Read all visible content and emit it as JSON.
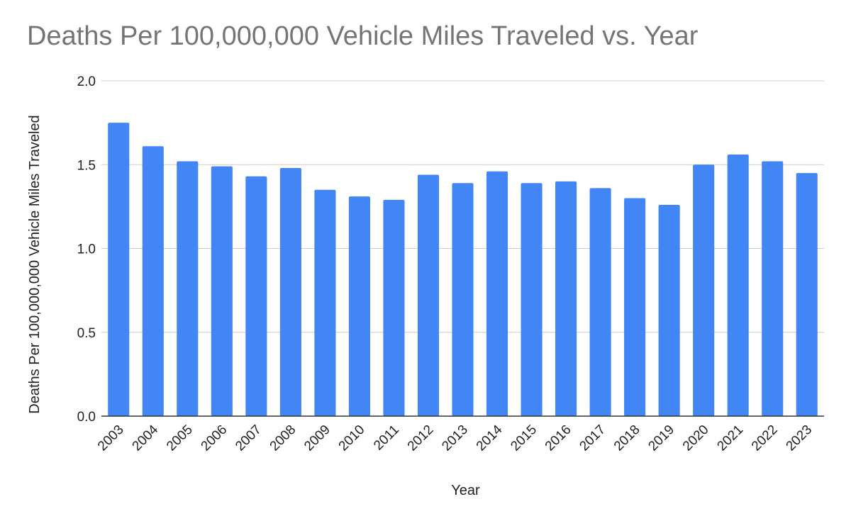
{
  "chart_data": {
    "type": "bar",
    "title": "Deaths Per 100,000,000 Vehicle Miles Traveled vs. Year",
    "xlabel": "Year",
    "ylabel": "Deaths Per 100,000,000 Vehicle Miles Traveled",
    "ylim": [
      0,
      2.0
    ],
    "yticks": [
      "0.0",
      "0.5",
      "1.0",
      "1.5",
      "2.0"
    ],
    "grid": true,
    "bar_color": "#4285f4",
    "categories": [
      "2003",
      "2004",
      "2005",
      "2006",
      "2007",
      "2008",
      "2009",
      "2010",
      "2011",
      "2012",
      "2013",
      "2014",
      "2015",
      "2016",
      "2017",
      "2018",
      "2019",
      "2020",
      "2021",
      "2022",
      "2023"
    ],
    "values": [
      1.75,
      1.61,
      1.52,
      1.49,
      1.43,
      1.48,
      1.35,
      1.31,
      1.29,
      1.44,
      1.39,
      1.46,
      1.39,
      1.4,
      1.36,
      1.3,
      1.26,
      1.5,
      1.56,
      1.52,
      1.45
    ]
  }
}
